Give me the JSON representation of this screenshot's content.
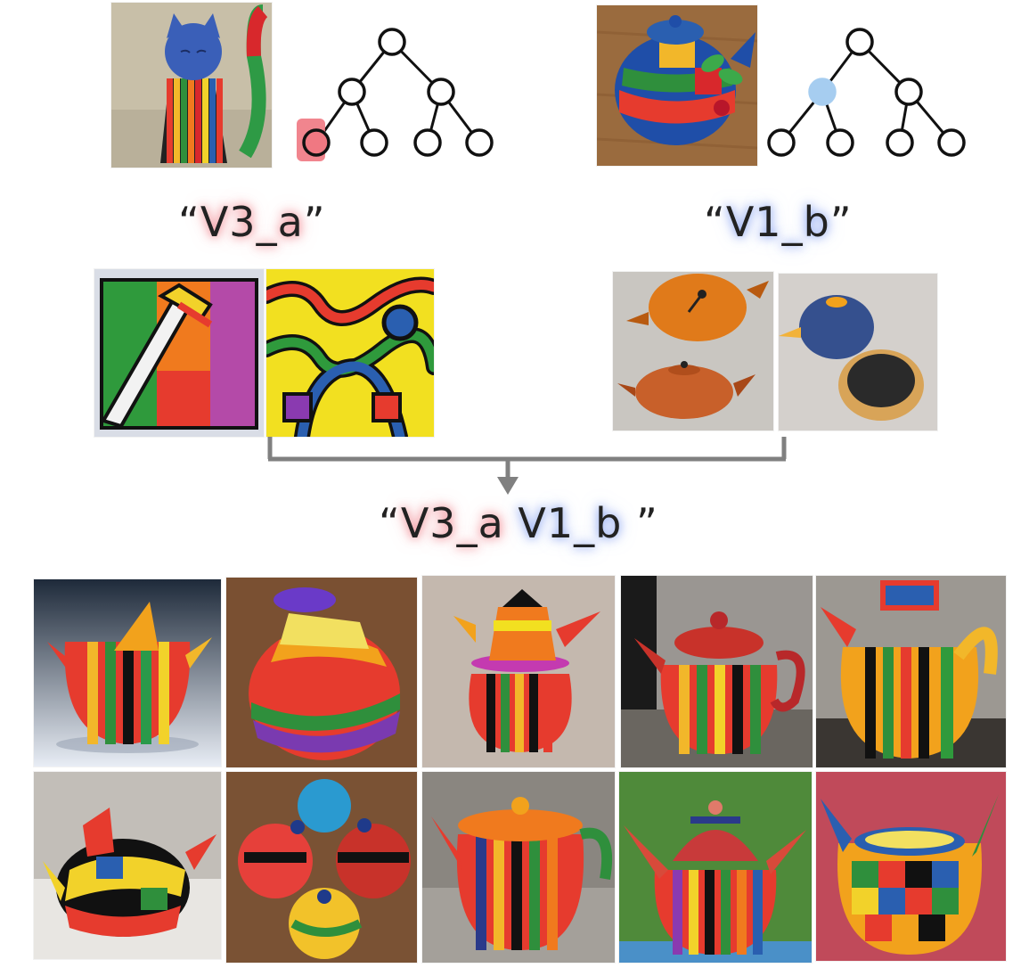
{
  "labels": {
    "left_token": "V3_a",
    "right_token": "V1_b",
    "combined_first": "V3_a",
    "combined_second": "V1_b"
  },
  "colors": {
    "left_highlight": "#f07882",
    "right_highlight": "#a6cdf0",
    "arrow": "#808080"
  },
  "trees": {
    "left_highlighted_node": "level2-leaf1",
    "right_highlighted_node": "level1-left"
  }
}
